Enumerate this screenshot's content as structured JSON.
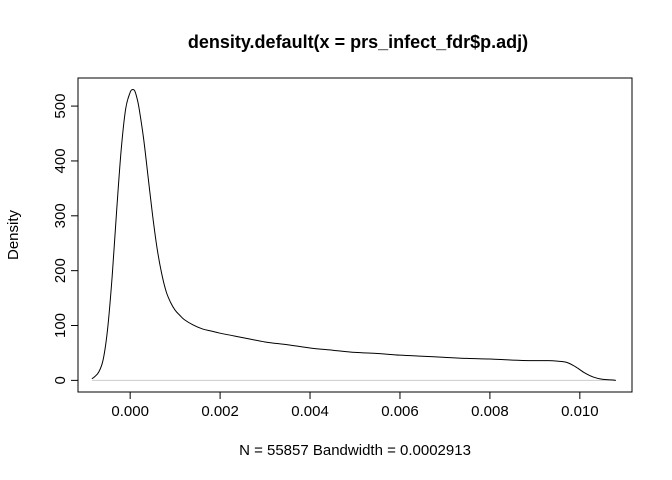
{
  "chart_data": {
    "type": "line",
    "title": "density.default(x = prs_infect_fdr$p.adj)",
    "xlabel": "N = 55857   Bandwidth = 0.0002913",
    "ylabel": "Density",
    "xlim": [
      -0.00116,
      0.01116
    ],
    "ylim": [
      -21.2,
      551.2
    ],
    "x_ticks": [
      0.0,
      0.002,
      0.004,
      0.006,
      0.008,
      0.01
    ],
    "x_tick_labels": [
      "0.000",
      "0.002",
      "0.004",
      "0.006",
      "0.008",
      "0.010"
    ],
    "y_ticks": [
      0,
      100,
      200,
      300,
      400,
      500
    ],
    "y_tick_labels": [
      "0",
      "100",
      "200",
      "300",
      "400",
      "500"
    ],
    "grid": false,
    "baseline": 0,
    "series": [
      {
        "x": [
          -0.00085,
          -0.0008,
          -0.0007,
          -0.0006,
          -0.0005,
          -0.0004,
          -0.0003,
          -0.0002,
          -0.0001,
          0.0,
          5e-05,
          0.0001,
          0.00015,
          0.0002,
          0.0003,
          0.0004,
          0.0005,
          0.0006,
          0.0007,
          0.0008,
          0.0009,
          0.001,
          0.0011,
          0.0012,
          0.0014,
          0.0016,
          0.0018,
          0.002,
          0.0025,
          0.003,
          0.0035,
          0.004,
          0.0045,
          0.005,
          0.0055,
          0.006,
          0.0065,
          0.007,
          0.0075,
          0.008,
          0.0085,
          0.009,
          0.0093,
          0.0095,
          0.0097,
          0.0099,
          0.0101,
          0.0103,
          0.0105,
          0.0107,
          0.0108
        ],
        "y": [
          3,
          6,
          15,
          38,
          95,
          190,
          310,
          420,
          495,
          525,
          530,
          528,
          515,
          495,
          440,
          370,
          300,
          240,
          195,
          162,
          142,
          128,
          119,
          111,
          101,
          94,
          90,
          86,
          78,
          70,
          65,
          59,
          55,
          51,
          49,
          46,
          44,
          42,
          40,
          39,
          37,
          36,
          36,
          35,
          33,
          25,
          14,
          6,
          2,
          1,
          0
        ]
      }
    ],
    "line_color": "#000000"
  }
}
